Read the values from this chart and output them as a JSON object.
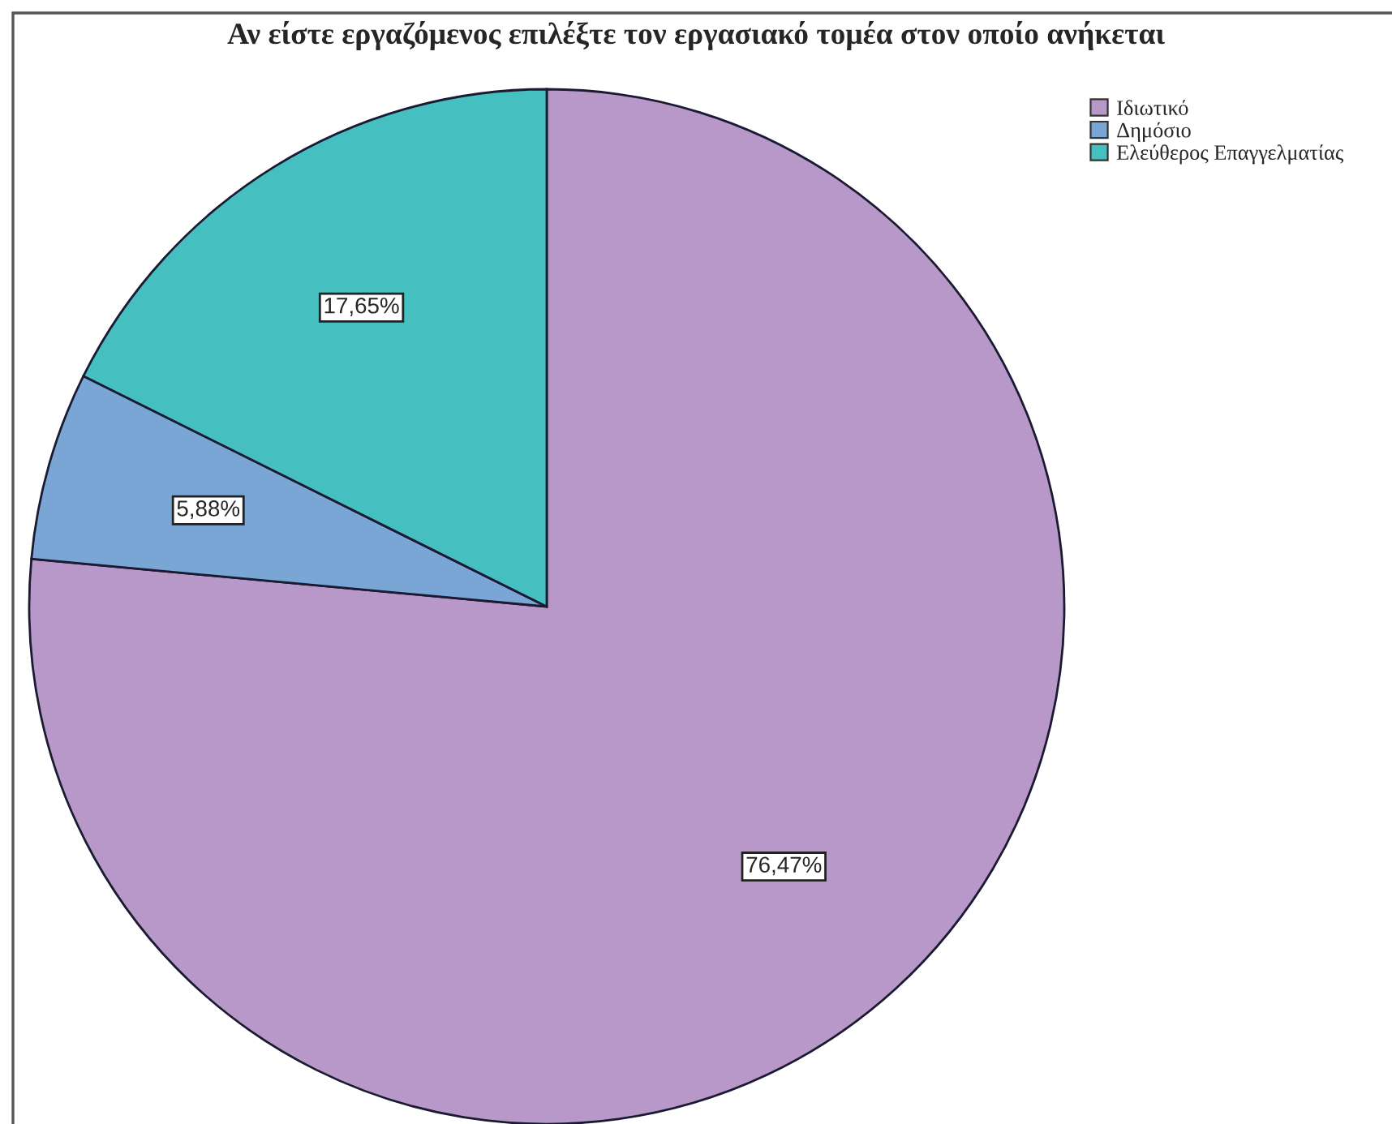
{
  "chart_data": {
    "type": "pie",
    "title": "Αν είστε εργαζόμενος επιλέξτε τον εργασιακό τομέα στον οποίο ανήκεται",
    "categories": [
      "Ιδιωτικό",
      "Δημόσιο",
      "Ελεύθερος Επαγγελματίας"
    ],
    "values": [
      76.47,
      5.88,
      17.65
    ],
    "colors": [
      "#b798c8",
      "#7aa6d6",
      "#46bfc1"
    ],
    "value_labels": [
      "76,47%",
      "5,88%",
      "17,65%"
    ],
    "legend": "top right"
  }
}
